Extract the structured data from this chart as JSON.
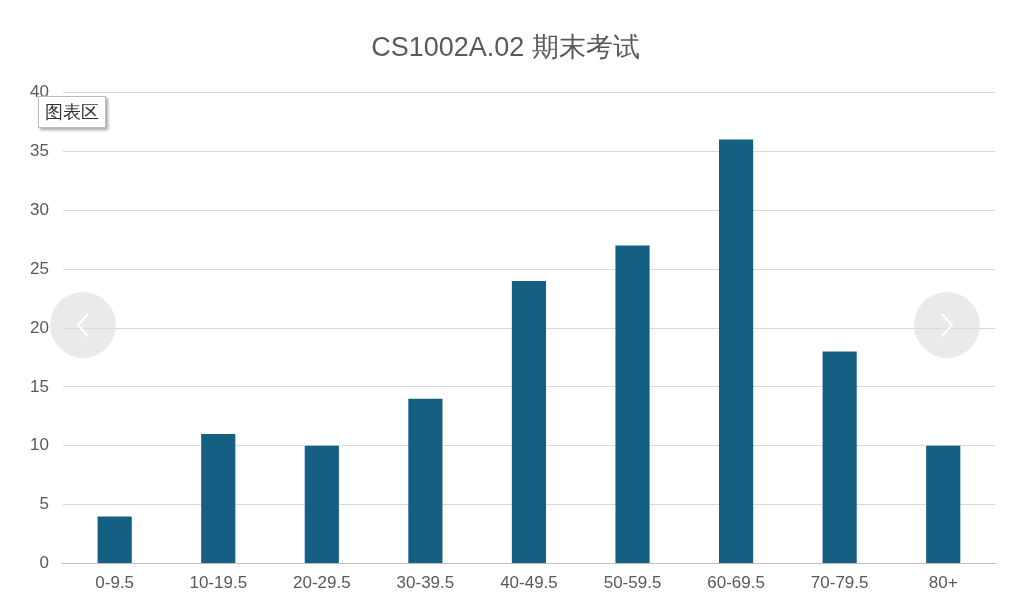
{
  "chart_data": {
    "type": "bar",
    "title": "CS1002A.02 期末考试",
    "categories": [
      "0-9.5",
      "10-19.5",
      "20-29.5",
      "30-39.5",
      "40-49.5",
      "50-59.5",
      "60-69.5",
      "70-79.5",
      "80+"
    ],
    "values": [
      4,
      11,
      10,
      14,
      24,
      27,
      36,
      18,
      10
    ],
    "color": "#156082",
    "ylim": [
      0,
      40
    ],
    "yticks": [
      0,
      5,
      10,
      15,
      20,
      25,
      30,
      35,
      40
    ],
    "grid": "y",
    "legend": false,
    "annotations": [
      "图表区"
    ]
  }
}
